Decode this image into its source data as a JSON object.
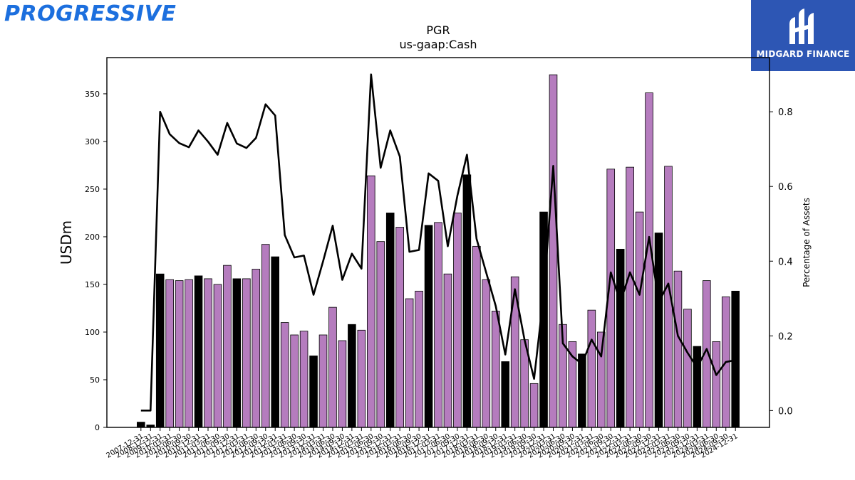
{
  "branding": {
    "left_logo_text": "PROGRESSIVE",
    "right_logo_text": "MIDGARD FINANCE"
  },
  "chart_data": {
    "type": "bar",
    "title": "PGR",
    "subtitle": "us-gaap:Cash",
    "ylabel": "USDm",
    "y2label": "Percentage of Assets",
    "ylim": [
      0,
      388
    ],
    "y2lim": [
      -0.045,
      0.945
    ],
    "yticks": [
      0,
      50,
      100,
      150,
      200,
      250,
      300,
      350
    ],
    "y2ticks": [
      0.0,
      0.2,
      0.4,
      0.6,
      0.8
    ],
    "categories": [
      "2007-12-31",
      "2008-12-31",
      "2009-12-31",
      "2010-03-31",
      "2010-06-30",
      "2010-09-30",
      "2010-12-31",
      "2011-03-31",
      "2011-06-30",
      "2011-09-30",
      "2011-12-31",
      "2012-03-31",
      "2012-06-30",
      "2012-09-30",
      "2012-12-31",
      "2013-03-31",
      "2013-06-30",
      "2013-09-30",
      "2013-12-31",
      "2014-03-31",
      "2014-06-30",
      "2014-09-30",
      "2014-12-31",
      "2015-03-31",
      "2015-06-30",
      "2015-09-30",
      "2015-12-31",
      "2016-03-31",
      "2016-06-30",
      "2016-09-30",
      "2016-12-31",
      "2017-03-31",
      "2017-06-30",
      "2017-09-30",
      "2017-12-31",
      "2018-03-31",
      "2018-06-30",
      "2018-09-30",
      "2018-12-31",
      "2019-03-31",
      "2019-06-30",
      "2019-09-30",
      "2019-12-31",
      "2020-03-31",
      "2020-06-30",
      "2020-09-30",
      "2020-12-31",
      "2021-03-31",
      "2021-06-30",
      "2021-09-30",
      "2021-12-31",
      "2022-03-31",
      "2022-06-30",
      "2022-09-30",
      "2022-12-31",
      "2023-03-31",
      "2023-06-30",
      "2023-09-30",
      "2023-12-31",
      "2024-03-31",
      "2024-06-30",
      "2024-09-30",
      "2024-12-31"
    ],
    "visible_tick_labels": [
      "2007-12-31",
      "2008-12-31",
      "2009-12-31",
      "2010-03-31",
      "2010-06-30",
      "2010-09-30",
      "2010-12-31",
      "2011-03-31",
      "2011-06-30",
      "2011-09-30",
      "2011-12-31",
      "2012-03-31",
      "2012-06-30",
      "2012-09-30",
      "2012-12-31",
      "2013-03-31",
      "2013-06-30",
      "2013-09-30",
      "2013-12-31",
      "2014-03-31",
      "2014-06-30",
      "2014-09-30",
      "2014-12-31",
      "2015-03-31",
      "2015-06-30",
      "2015-09-30",
      "2015-12-31",
      "2016-03-31",
      "2016-06-30",
      "2016-09-30",
      "2016-12-31",
      "2017-03-31",
      "2017-06-30",
      "2017-09-30",
      "2017-12-31",
      "2018-03-31",
      "2018-06-30",
      "2018-09-30",
      "2018-12-31",
      "2019-03-31",
      "2019-06-30",
      "2019-09-30",
      "2019-12-31",
      "2020-03-31",
      "2020-06-30",
      "2020-09-30",
      "2020-12-31",
      "2021-03-31",
      "2021-06-30",
      "2021-09-30",
      "2021-12-31",
      "2022-03-31",
      "2022-06-30",
      "2022-09-30",
      "2022-12-31",
      "2023-03-31",
      "2023-06-30",
      "2023-09-30",
      "2023-12-31",
      "2024-03-31",
      "2024-06-30",
      "2024-09-30",
      "2024-12-31"
    ],
    "bars": {
      "values": [
        5.5,
        2.5,
        161,
        155,
        154,
        155,
        159,
        156,
        150,
        170,
        156,
        156,
        166,
        192,
        179,
        110,
        97,
        101,
        75,
        97,
        126,
        91,
        108,
        102,
        264,
        195,
        225,
        210,
        135,
        143,
        212,
        215,
        161,
        225,
        265,
        190,
        155,
        122,
        69,
        158,
        92,
        46,
        226,
        370,
        108,
        90,
        77,
        123,
        100,
        271,
        187,
        273,
        226,
        351,
        204,
        274,
        164,
        124,
        85,
        154,
        90,
        137,
        143
      ],
      "annual_flags": [
        1,
        1,
        1,
        0,
        0,
        0,
        1,
        0,
        0,
        0,
        1,
        0,
        0,
        0,
        1,
        0,
        0,
        0,
        1,
        0,
        0,
        0,
        1,
        0,
        0,
        0,
        1,
        0,
        0,
        0,
        1,
        0,
        0,
        0,
        1,
        0,
        0,
        0,
        1,
        0,
        0,
        0,
        1,
        0,
        0,
        0,
        1,
        0,
        0,
        0,
        1,
        0,
        0,
        0,
        1,
        0,
        0,
        0,
        1,
        0,
        0,
        0,
        1
      ],
      "annual_color": "#000000",
      "quarter_color": "#b57cbe",
      "edge_color": "#000000"
    },
    "line": {
      "values": [
        0.0,
        0.0,
        0.8,
        0.74,
        0.716,
        0.705,
        0.75,
        0.72,
        0.685,
        0.77,
        0.715,
        0.703,
        0.73,
        0.82,
        0.79,
        0.47,
        0.41,
        0.415,
        0.31,
        0.4,
        0.495,
        0.35,
        0.42,
        0.38,
        0.9,
        0.65,
        0.75,
        0.68,
        0.425,
        0.43,
        0.635,
        0.615,
        0.44,
        0.575,
        0.685,
        0.46,
        0.37,
        0.28,
        0.15,
        0.325,
        0.19,
        0.085,
        0.31,
        0.655,
        0.18,
        0.145,
        0.125,
        0.19,
        0.145,
        0.37,
        0.29,
        0.37,
        0.31,
        0.465,
        0.29,
        0.34,
        0.2,
        0.155,
        0.115,
        0.165,
        0.095,
        0.13,
        0.135
      ],
      "color": "#000000"
    }
  }
}
